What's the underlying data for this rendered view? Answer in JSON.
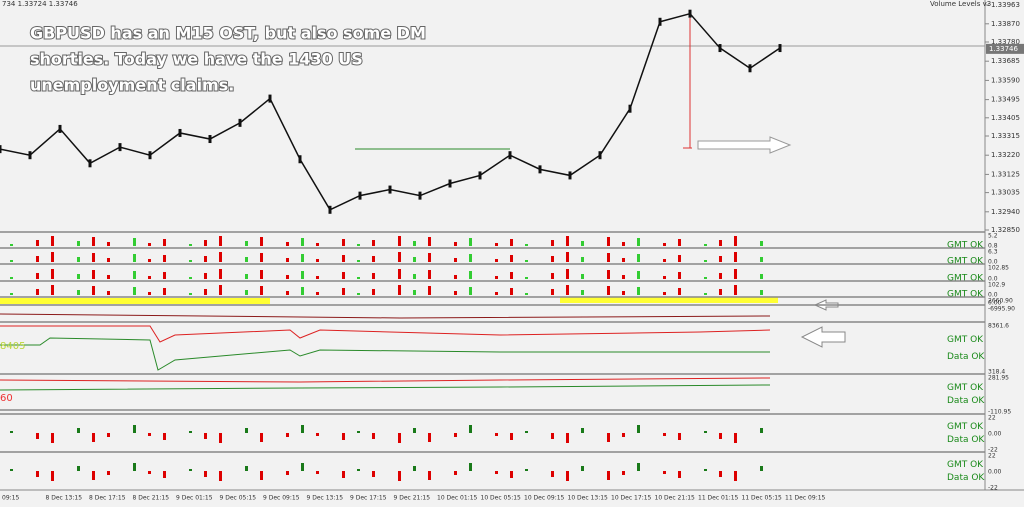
{
  "header": {
    "quote": "734 1.33724 1.33746",
    "indicator": "Volume Levels v3"
  },
  "annotation": [
    "GBPUSD has an M15 OST, but also some DM",
    "shorties. Today we have the 1430 US",
    "unemployment claims."
  ],
  "price": {
    "ylim": [
      1.3285,
      1.33963
    ],
    "yticks": [
      1.33963,
      {
        "value": 1.3387,
        "label": "1.33870"
      },
      {
        "value": 1.3378,
        "label": "1.33780"
      },
      1.33685,
      {
        "value": 1.3359,
        "label": "1.33590"
      },
      1.33495,
      1.33405,
      1.33315,
      {
        "value": 1.3322,
        "label": "1.33220"
      },
      1.33125,
      1.33035,
      {
        "value": 1.3294,
        "label": "1.32940"
      },
      {
        "value": 1.3285,
        "label": "1.32850"
      }
    ],
    "current": 1.33746,
    "values": [
      1.3325,
      1.3322,
      1.3335,
      1.3318,
      1.3326,
      1.3322,
      1.3333,
      1.333,
      1.3338,
      1.335,
      1.332,
      1.3295,
      1.3302,
      1.3305,
      1.3302,
      1.3308,
      1.3312,
      1.3322,
      1.3315,
      1.3312,
      1.3322,
      1.3345,
      1.3388,
      1.3392,
      1.3375,
      1.3365,
      1.3375
    ]
  },
  "panels": [
    {
      "labels": [
        "GMT OK"
      ],
      "axis": [
        "5.2",
        "0.8"
      ]
    },
    {
      "labels": [
        "GMT OK"
      ],
      "axis": [
        "6.3",
        "0.0"
      ]
    },
    {
      "labels": [
        "GMT OK"
      ],
      "axis": [
        "102.85",
        "0.0"
      ]
    },
    {
      "labels": [
        "GMT OK"
      ],
      "axis": [
        "102.9",
        "0.0"
      ]
    },
    {
      "labels": [],
      "axis": [
        "2660.90",
        "0.00"
      ]
    },
    {
      "labels": [],
      "axis": [
        "-6995.90"
      ]
    },
    {
      "labels": [
        "GMT OK",
        "Data OK"
      ],
      "axis": [
        "8361.6",
        "318.4"
      ],
      "tag": "8405"
    },
    {
      "labels": [
        "GMT OK",
        "Data OK"
      ],
      "axis": [
        "281.95",
        "-110.95"
      ],
      "tag": "60"
    },
    {
      "labels": [
        "GMT OK",
        "Data OK"
      ],
      "axis": [
        "22",
        "0.00",
        "-22"
      ]
    },
    {
      "labels": [
        "GMT OK",
        "Data OK"
      ],
      "axis": [
        "22",
        "0.00",
        "-22"
      ]
    }
  ],
  "time_labels": [
    "09:15",
    "8 Dec 13:15",
    "8 Dec 17:15",
    "8 Dec 21:15",
    "9 Dec 01:15",
    "9 Dec 05:15",
    "9 Dec 09:15",
    "9 Dec 13:15",
    "9 Dec 17:15",
    "9 Dec 21:15",
    "10 Dec 01:15",
    "10 Dec 05:15",
    "10 Dec 09:15",
    "10 Dec 13:15",
    "10 Dec 17:15",
    "10 Dec 21:15",
    "11 Dec 01:15",
    "11 Dec 05:15",
    "11 Dec 09:15"
  ]
}
